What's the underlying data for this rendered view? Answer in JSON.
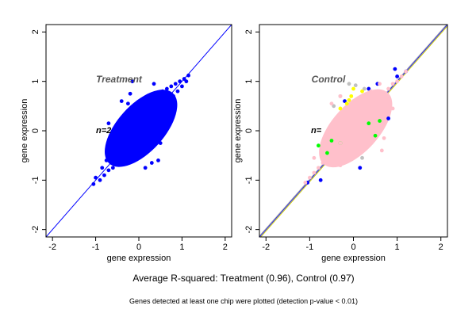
{
  "caption": "Average R-squared: Treatment (0.96), Control (0.97)",
  "footnote": "Genes detected at least one chip were plotted (detection p-value < 0.01)",
  "chart_data": [
    {
      "type": "scatter",
      "title": "Treatment",
      "annotation": "n=2",
      "xlabel": "gene expression",
      "ylabel": "gene expression",
      "xlim": [
        -2.15,
        2.15
      ],
      "ylim": [
        -2.15,
        2.15
      ],
      "xticks": [
        -2,
        -1,
        0,
        1,
        2
      ],
      "yticks": [
        -2,
        -1,
        0,
        1,
        2
      ],
      "grid": false,
      "reference_line": {
        "slope": 1,
        "intercept": 0,
        "color": "#0000ff"
      },
      "series": [
        {
          "color": "#0000ff",
          "points": [
            [
              -1.05,
              -1.08
            ],
            [
              -1.0,
              -0.95
            ],
            [
              -0.9,
              -1.0
            ],
            [
              -0.85,
              -0.75
            ],
            [
              -0.8,
              -0.9
            ],
            [
              -0.75,
              -0.6
            ],
            [
              -0.7,
              -0.8
            ],
            [
              -0.65,
              -0.5
            ],
            [
              -0.6,
              -0.75
            ],
            [
              -0.55,
              -0.35
            ],
            [
              -0.5,
              -0.6
            ],
            [
              -0.45,
              -0.2
            ],
            [
              -0.4,
              -0.55
            ],
            [
              -0.35,
              0.0
            ],
            [
              -0.3,
              -0.5
            ],
            [
              -0.25,
              0.1
            ],
            [
              -0.2,
              -0.35
            ],
            [
              -0.15,
              0.2
            ],
            [
              -0.1,
              -0.3
            ],
            [
              -0.05,
              0.3
            ],
            [
              0.0,
              -0.2
            ],
            [
              0.05,
              0.35
            ],
            [
              0.1,
              -0.05
            ],
            [
              0.15,
              0.45
            ],
            [
              0.2,
              0.05
            ],
            [
              0.25,
              0.55
            ],
            [
              0.3,
              0.15
            ],
            [
              0.35,
              0.65
            ],
            [
              0.4,
              0.3
            ],
            [
              0.45,
              0.7
            ],
            [
              0.5,
              0.4
            ],
            [
              0.55,
              0.8
            ],
            [
              0.6,
              0.5
            ],
            [
              0.65,
              0.85
            ],
            [
              0.7,
              0.6
            ],
            [
              0.75,
              0.9
            ],
            [
              0.8,
              0.7
            ],
            [
              0.85,
              0.95
            ],
            [
              0.9,
              0.8
            ],
            [
              0.95,
              1.0
            ],
            [
              1.0,
              0.9
            ],
            [
              1.05,
              1.05
            ],
            [
              1.1,
              1.0
            ],
            [
              1.15,
              1.12
            ],
            [
              -0.4,
              0.6
            ],
            [
              -0.25,
              0.55
            ],
            [
              0.3,
              -0.65
            ],
            [
              0.45,
              -0.6
            ],
            [
              -0.7,
              0.15
            ],
            [
              0.5,
              -0.25
            ],
            [
              -0.2,
              0.75
            ],
            [
              0.15,
              -0.75
            ],
            [
              0.35,
              0.95
            ],
            [
              -0.15,
              1.0
            ],
            [
              0.55,
              0.0
            ]
          ]
        }
      ]
    },
    {
      "type": "scatter",
      "title": "Control",
      "annotation": "n=",
      "xlabel": "gene expression",
      "ylabel": "gene expression",
      "xlim": [
        -2.15,
        2.15
      ],
      "ylim": [
        -2.15,
        2.15
      ],
      "xticks": [
        -2,
        -1,
        0,
        1,
        2
      ],
      "yticks": [
        -2,
        -1,
        0,
        1,
        2
      ],
      "grid": false,
      "reference_lines": [
        {
          "slope": 1,
          "intercept": 0,
          "color": "#0000ff"
        },
        {
          "slope": 1,
          "intercept": -0.03,
          "color": "#cccc00"
        },
        {
          "slope": 1,
          "intercept": 0.02,
          "color": "#aaaaaa"
        }
      ],
      "series": [
        {
          "color": "#0000ff",
          "points": [
            [
              -1.05,
              -1.05
            ],
            [
              0.95,
              1.25
            ],
            [
              1.2,
              1.2
            ],
            [
              0.35,
              0.85
            ],
            [
              0.15,
              -0.75
            ],
            [
              -0.2,
              0.6
            ],
            [
              0.8,
              0.25
            ],
            [
              0.55,
              0.95
            ],
            [
              -0.75,
              -1.0
            ],
            [
              1.0,
              1.1
            ]
          ]
        },
        {
          "color": "#ffff00",
          "points": [
            [
              -0.05,
              0.7
            ],
            [
              -0.3,
              0.45
            ],
            [
              -0.15,
              0.55
            ],
            [
              0.2,
              0.8
            ],
            [
              0.0,
              0.85
            ],
            [
              -0.1,
              0.62
            ]
          ]
        },
        {
          "color": "#00ff00",
          "points": [
            [
              -0.8,
              -0.3
            ],
            [
              -0.5,
              -0.2
            ],
            [
              -0.3,
              -0.25
            ],
            [
              0.5,
              -0.1
            ],
            [
              0.35,
              0.15
            ],
            [
              0.6,
              0.2
            ],
            [
              -0.6,
              -0.45
            ]
          ]
        },
        {
          "color": "#c0c0c0",
          "points": [
            [
              -0.1,
              0.95
            ],
            [
              -0.3,
              0.7
            ],
            [
              0.05,
              0.92
            ],
            [
              0.25,
              0.85
            ],
            [
              -0.45,
              0.5
            ],
            [
              0.2,
              -0.55
            ]
          ]
        },
        {
          "color": "#ffc0cb",
          "points": [
            [
              -1.1,
              -1.05
            ],
            [
              -1.0,
              -0.95
            ],
            [
              -0.9,
              -0.85
            ],
            [
              -0.8,
              -0.75
            ],
            [
              -0.7,
              -0.65
            ],
            [
              -0.6,
              -0.55
            ],
            [
              -0.5,
              -0.45
            ],
            [
              -0.4,
              -0.35
            ],
            [
              -0.3,
              -0.25
            ],
            [
              -0.2,
              -0.15
            ],
            [
              -0.1,
              -0.05
            ],
            [
              0.0,
              0.05
            ],
            [
              0.1,
              0.15
            ],
            [
              0.2,
              0.25
            ],
            [
              0.3,
              0.35
            ],
            [
              0.4,
              0.45
            ],
            [
              0.5,
              0.55
            ],
            [
              0.6,
              0.65
            ],
            [
              0.7,
              0.75
            ],
            [
              0.8,
              0.85
            ],
            [
              0.9,
              0.95
            ],
            [
              1.0,
              1.0
            ],
            [
              1.1,
              1.1
            ],
            [
              1.2,
              1.2
            ],
            [
              -0.6,
              -0.05
            ],
            [
              -0.4,
              0.25
            ],
            [
              -0.2,
              0.45
            ],
            [
              0.0,
              0.6
            ],
            [
              0.2,
              0.7
            ],
            [
              0.4,
              0.8
            ],
            [
              0.6,
              0.95
            ],
            [
              -0.9,
              -0.55
            ],
            [
              -0.3,
              -0.7
            ],
            [
              -0.1,
              -0.55
            ],
            [
              0.1,
              -0.35
            ],
            [
              0.3,
              -0.15
            ],
            [
              0.5,
              0.05
            ],
            [
              0.7,
              0.25
            ],
            [
              0.9,
              0.45
            ],
            [
              0.65,
              -0.4
            ],
            [
              0.7,
              -0.15
            ],
            [
              -0.5,
              0.55
            ],
            [
              -0.3,
              0.7
            ]
          ]
        }
      ]
    }
  ]
}
